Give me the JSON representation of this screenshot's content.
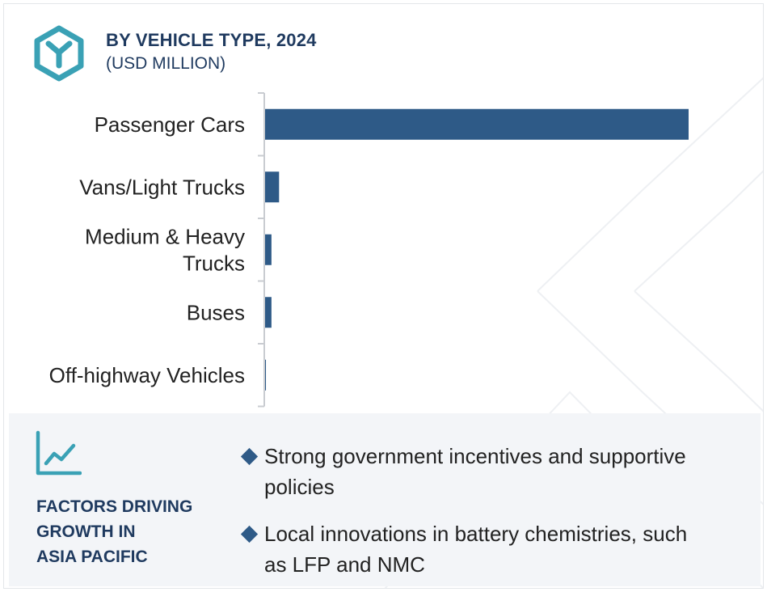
{
  "header": {
    "title": "BY VEHICLE TYPE, 2024",
    "subtitle": "(USD MILLION)",
    "icon": "hexagon-y-logo-icon"
  },
  "chart_data": {
    "type": "bar",
    "orientation": "horizontal",
    "title": "BY VEHICLE TYPE, 2024",
    "subtitle": "(USD MILLION)",
    "categories": [
      "Passenger Cars",
      "Vans/Light Trucks",
      "Medium & Heavy Trucks",
      "Buses",
      "Off-highway Vehicles"
    ],
    "category_lines": [
      [
        "Passenger Cars"
      ],
      [
        "Vans/Light Trucks"
      ],
      [
        "Medium & Heavy",
        "Trucks"
      ],
      [
        "Buses"
      ],
      [
        "Off-highway Vehicles"
      ]
    ],
    "values": [
      100,
      3.3,
      1.5,
      1.5,
      0.2
    ],
    "xlim": [
      0,
      100
    ],
    "value_axis_shown": false,
    "grid": false,
    "bar_color": "#2e5a87"
  },
  "panel": {
    "icon": "line-chart-icon",
    "title_lines": [
      "FACTORS DRIVING",
      "GROWTH IN",
      "ASIA PACIFIC"
    ],
    "factors": [
      {
        "lines": [
          "Strong government incentives and supportive",
          "policies"
        ]
      },
      {
        "lines": [
          "Local innovations in battery chemistries, such",
          "as LFP and NMC"
        ]
      }
    ]
  },
  "colors": {
    "accent": "#2e5a87",
    "heading": "#1f3a5f",
    "teal": "#3aa1b5",
    "panel_bg": "#f3f5f8"
  }
}
